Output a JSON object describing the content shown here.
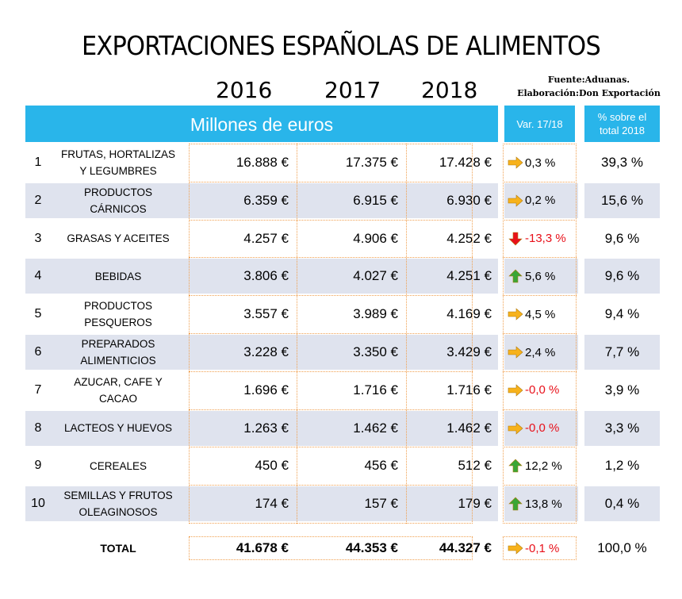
{
  "title": "EXPORTACIONES ESPAÑOLAS DE ALIMENTOS",
  "source_line1": "Fuente:Aduanas.",
  "source_line2": "Elaboración:Don Exportación",
  "units_header": "Millones de euros",
  "var_header": "Var. 17/18",
  "pct_header_line1": "% sobre el",
  "pct_header_line2": "total 2018",
  "colors": {
    "header_blue": "#29b5ea",
    "row_shade": "#dfe3ee",
    "arrow_orange": "#f7b21b",
    "arrow_green": "#3aa635",
    "arrow_red": "#e8101a",
    "dotted_border": "#f0a050"
  },
  "chart_data": {
    "type": "table",
    "title": "EXPORTACIONES ESPAÑOLAS DE ALIMENTOS",
    "years": [
      "2016",
      "2017",
      "2018"
    ],
    "rows": [
      {
        "n": "1",
        "cat1": "FRUTAS, HORTALIZAS",
        "cat2": "Y LEGUMBRES",
        "v2016": "16.888 €",
        "v2017": "17.375 €",
        "v2018": "17.428 €",
        "var": "0,3 %",
        "trend": "flat",
        "pct": "39,3 %"
      },
      {
        "n": "2",
        "cat1": "PRODUCTOS",
        "cat2": "CÁRNICOS",
        "v2016": "6.359 €",
        "v2017": "6.915 €",
        "v2018": "6.930 €",
        "var": "0,2 %",
        "trend": "flat",
        "pct": "15,6 %"
      },
      {
        "n": "3",
        "cat1": "GRASAS Y ACEITES",
        "cat2": "",
        "v2016": "4.257 €",
        "v2017": "4.906 €",
        "v2018": "4.252 €",
        "var": "-13,3 %",
        "trend": "down",
        "pct": "9,6 %"
      },
      {
        "n": "4",
        "cat1": "BEBIDAS",
        "cat2": "",
        "v2016": "3.806 €",
        "v2017": "4.027 €",
        "v2018": "4.251 €",
        "var": "5,6 %",
        "trend": "up",
        "pct": "9,6 %"
      },
      {
        "n": "5",
        "cat1": "PRODUCTOS",
        "cat2": "PESQUEROS",
        "v2016": "3.557 €",
        "v2017": "3.989 €",
        "v2018": "4.169 €",
        "var": "4,5 %",
        "trend": "flat",
        "pct": "9,4 %"
      },
      {
        "n": "6",
        "cat1": "PREPARADOS",
        "cat2": "ALIMENTICIOS",
        "v2016": "3.228 €",
        "v2017": "3.350 €",
        "v2018": "3.429 €",
        "var": "2,4 %",
        "trend": "flat",
        "pct": "7,7 %"
      },
      {
        "n": "7",
        "cat1": "AZUCAR, CAFE Y",
        "cat2": "CACAO",
        "v2016": "1.696 €",
        "v2017": "1.716 €",
        "v2018": "1.716 €",
        "var": "-0,0 %",
        "trend": "flat",
        "pct": "3,9 %"
      },
      {
        "n": "8",
        "cat1": "LACTEOS Y HUEVOS",
        "cat2": "",
        "v2016": "1.263 €",
        "v2017": "1.462 €",
        "v2018": "1.462 €",
        "var": "-0,0 %",
        "trend": "flat",
        "pct": "3,3 %"
      },
      {
        "n": "9",
        "cat1": "CEREALES",
        "cat2": "",
        "v2016": "450 €",
        "v2017": "456 €",
        "v2018": "512 €",
        "var": "12,2 %",
        "trend": "up",
        "pct": "1,2 %"
      },
      {
        "n": "10",
        "cat1": "SEMILLAS Y FRUTOS",
        "cat2": "OLEAGINOSOS",
        "v2016": "174 €",
        "v2017": "157 €",
        "v2018": "179 €",
        "var": "13,8 %",
        "trend": "up",
        "pct": "0,4 %"
      }
    ],
    "total": {
      "label": "TOTAL",
      "v2016": "41.678 €",
      "v2017": "44.353 €",
      "v2018": "44.327 €",
      "var": "-0,1 %",
      "trend": "flat",
      "pct": "100,0 %"
    }
  }
}
